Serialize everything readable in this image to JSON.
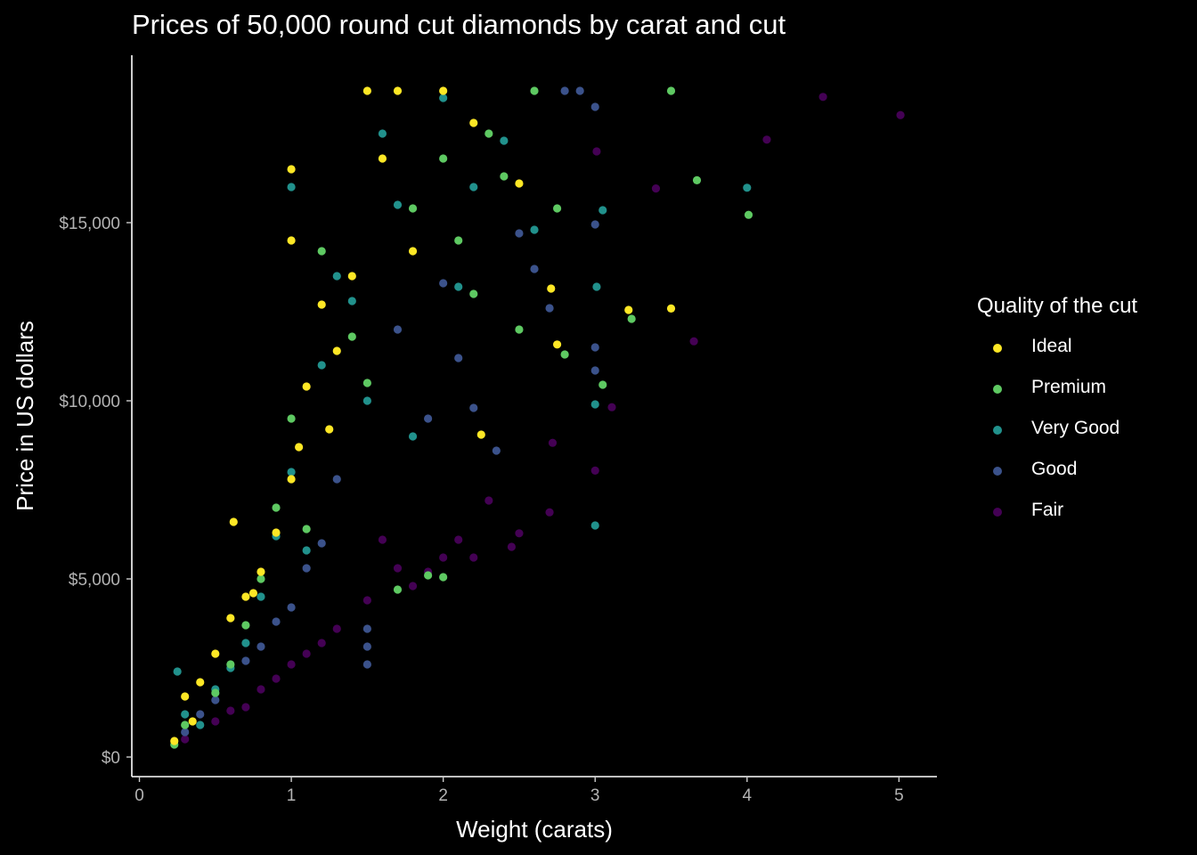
{
  "chart_data": {
    "type": "scatter",
    "title": "Prices of 50,000 round cut diamonds by carat and cut",
    "xlabel": "Weight (carats)",
    "ylabel": "Price in US dollars",
    "xlim": [
      -0.05,
      5.25
    ],
    "ylim": [
      -550,
      19700
    ],
    "x_ticks": [
      0,
      1,
      2,
      3,
      4,
      5
    ],
    "x_tick_labels": [
      "0",
      "1",
      "2",
      "3",
      "4",
      "5"
    ],
    "y_ticks": [
      0,
      5000,
      10000,
      15000
    ],
    "y_tick_labels": [
      "$0",
      "$5,000",
      "$10,000",
      "$15,000"
    ],
    "grid": false,
    "legend": {
      "title": "Quality of the cut",
      "position": "right",
      "entries": [
        "Ideal",
        "Premium",
        "Very Good",
        "Good",
        "Fair"
      ]
    },
    "series": [
      {
        "name": "Fair",
        "color": "#440154",
        "points": [
          [
            4.5,
            18530
          ],
          [
            5.01,
            18018
          ],
          [
            4.13,
            17330
          ],
          [
            3.4,
            15960
          ],
          [
            3.65,
            11670
          ],
          [
            3.11,
            9820
          ],
          [
            2.72,
            8820
          ],
          [
            2.7,
            6870
          ],
          [
            2.5,
            6280
          ],
          [
            3.0,
            8040
          ],
          [
            2.0,
            5600
          ],
          [
            2.1,
            6100
          ],
          [
            2.3,
            7200
          ],
          [
            1.6,
            6100
          ],
          [
            1.7,
            5300
          ],
          [
            1.5,
            4400
          ],
          [
            1.2,
            3200
          ],
          [
            1.0,
            2600
          ],
          [
            0.9,
            2200
          ],
          [
            0.8,
            1900
          ],
          [
            0.7,
            1400
          ],
          [
            0.5,
            1000
          ],
          [
            0.3,
            500
          ],
          [
            1.1,
            2900
          ],
          [
            1.3,
            3600
          ],
          [
            2.2,
            5600
          ],
          [
            3.01,
            17000
          ],
          [
            2.45,
            5900
          ],
          [
            1.8,
            4800
          ],
          [
            1.9,
            5200
          ],
          [
            0.6,
            1300
          ]
        ]
      },
      {
        "name": "Good",
        "color": "#3b528b",
        "points": [
          [
            2.8,
            18700
          ],
          [
            3.0,
            18250
          ],
          [
            3.0,
            14950
          ],
          [
            3.0,
            11500
          ],
          [
            3.0,
            10850
          ],
          [
            2.0,
            13300
          ],
          [
            2.5,
            14700
          ],
          [
            2.6,
            13700
          ],
          [
            1.5,
            3100
          ],
          [
            1.5,
            3600
          ],
          [
            1.5,
            2600
          ],
          [
            2.9,
            18700
          ],
          [
            2.2,
            9800
          ],
          [
            1.9,
            9500
          ],
          [
            1.7,
            12000
          ],
          [
            1.2,
            6000
          ],
          [
            1.0,
            4200
          ],
          [
            0.9,
            3800
          ],
          [
            0.7,
            2700
          ],
          [
            0.5,
            1600
          ],
          [
            0.3,
            700
          ],
          [
            2.1,
            11200
          ],
          [
            2.35,
            8600
          ],
          [
            2.7,
            12600
          ],
          [
            1.3,
            7800
          ],
          [
            1.1,
            5300
          ],
          [
            0.8,
            3100
          ],
          [
            0.4,
            1200
          ]
        ]
      },
      {
        "name": "Very Good",
        "color": "#21918c",
        "points": [
          [
            4.0,
            15980
          ],
          [
            3.01,
            13200
          ],
          [
            3.0,
            9900
          ],
          [
            3.0,
            6500
          ],
          [
            3.05,
            15350
          ],
          [
            2.0,
            18500
          ],
          [
            2.2,
            16000
          ],
          [
            1.6,
            17500
          ],
          [
            1.0,
            16000
          ],
          [
            1.5,
            10000
          ],
          [
            1.0,
            8000
          ],
          [
            0.9,
            6200
          ],
          [
            0.8,
            4500
          ],
          [
            0.7,
            3200
          ],
          [
            0.6,
            2500
          ],
          [
            0.5,
            1900
          ],
          [
            0.3,
            1200
          ],
          [
            1.2,
            11000
          ],
          [
            1.3,
            13500
          ],
          [
            1.7,
            15500
          ],
          [
            2.4,
            17300
          ],
          [
            2.6,
            14800
          ],
          [
            1.1,
            5800
          ],
          [
            0.4,
            900
          ],
          [
            2.1,
            13200
          ],
          [
            1.8,
            9000
          ],
          [
            1.4,
            12800
          ],
          [
            0.25,
            2400
          ]
        ]
      },
      {
        "name": "Premium",
        "color": "#5ec962",
        "points": [
          [
            3.5,
            18700
          ],
          [
            3.67,
            16190
          ],
          [
            4.01,
            15220
          ],
          [
            3.24,
            12300
          ],
          [
            3.05,
            10450
          ],
          [
            2.6,
            18700
          ],
          [
            2.3,
            17500
          ],
          [
            2.0,
            16800
          ],
          [
            2.1,
            14500
          ],
          [
            2.2,
            13000
          ],
          [
            2.5,
            12000
          ],
          [
            2.8,
            11300
          ],
          [
            2.0,
            5050
          ],
          [
            1.9,
            5100
          ],
          [
            1.7,
            4700
          ],
          [
            1.5,
            10500
          ],
          [
            1.2,
            14200
          ],
          [
            1.0,
            9500
          ],
          [
            0.9,
            7000
          ],
          [
            0.8,
            5000
          ],
          [
            0.7,
            3700
          ],
          [
            0.6,
            2600
          ],
          [
            0.5,
            1800
          ],
          [
            0.3,
            900
          ],
          [
            0.23,
            350
          ],
          [
            1.8,
            15400
          ],
          [
            2.4,
            16300
          ],
          [
            1.4,
            11800
          ],
          [
            1.1,
            6400
          ],
          [
            2.75,
            15400
          ]
        ]
      },
      {
        "name": "Ideal",
        "color": "#fde725",
        "points": [
          [
            3.5,
            12590
          ],
          [
            3.22,
            12550
          ],
          [
            2.71,
            13150
          ],
          [
            2.75,
            11580
          ],
          [
            2.25,
            9050
          ],
          [
            1.0,
            16500
          ],
          [
            1.0,
            14500
          ],
          [
            1.5,
            18700
          ],
          [
            1.7,
            18700
          ],
          [
            2.0,
            18700
          ],
          [
            1.2,
            12700
          ],
          [
            1.3,
            11400
          ],
          [
            1.1,
            10400
          ],
          [
            1.0,
            7800
          ],
          [
            0.9,
            6300
          ],
          [
            0.8,
            5200
          ],
          [
            0.7,
            4500
          ],
          [
            0.6,
            3900
          ],
          [
            0.62,
            6600
          ],
          [
            0.5,
            2900
          ],
          [
            0.4,
            2100
          ],
          [
            0.3,
            1700
          ],
          [
            0.23,
            450
          ],
          [
            0.35,
            1000
          ],
          [
            1.4,
            13500
          ],
          [
            1.6,
            16800
          ],
          [
            1.8,
            14200
          ],
          [
            2.2,
            17800
          ],
          [
            2.5,
            16100
          ],
          [
            1.25,
            9200
          ],
          [
            1.05,
            8700
          ],
          [
            0.75,
            4600
          ]
        ]
      }
    ]
  }
}
